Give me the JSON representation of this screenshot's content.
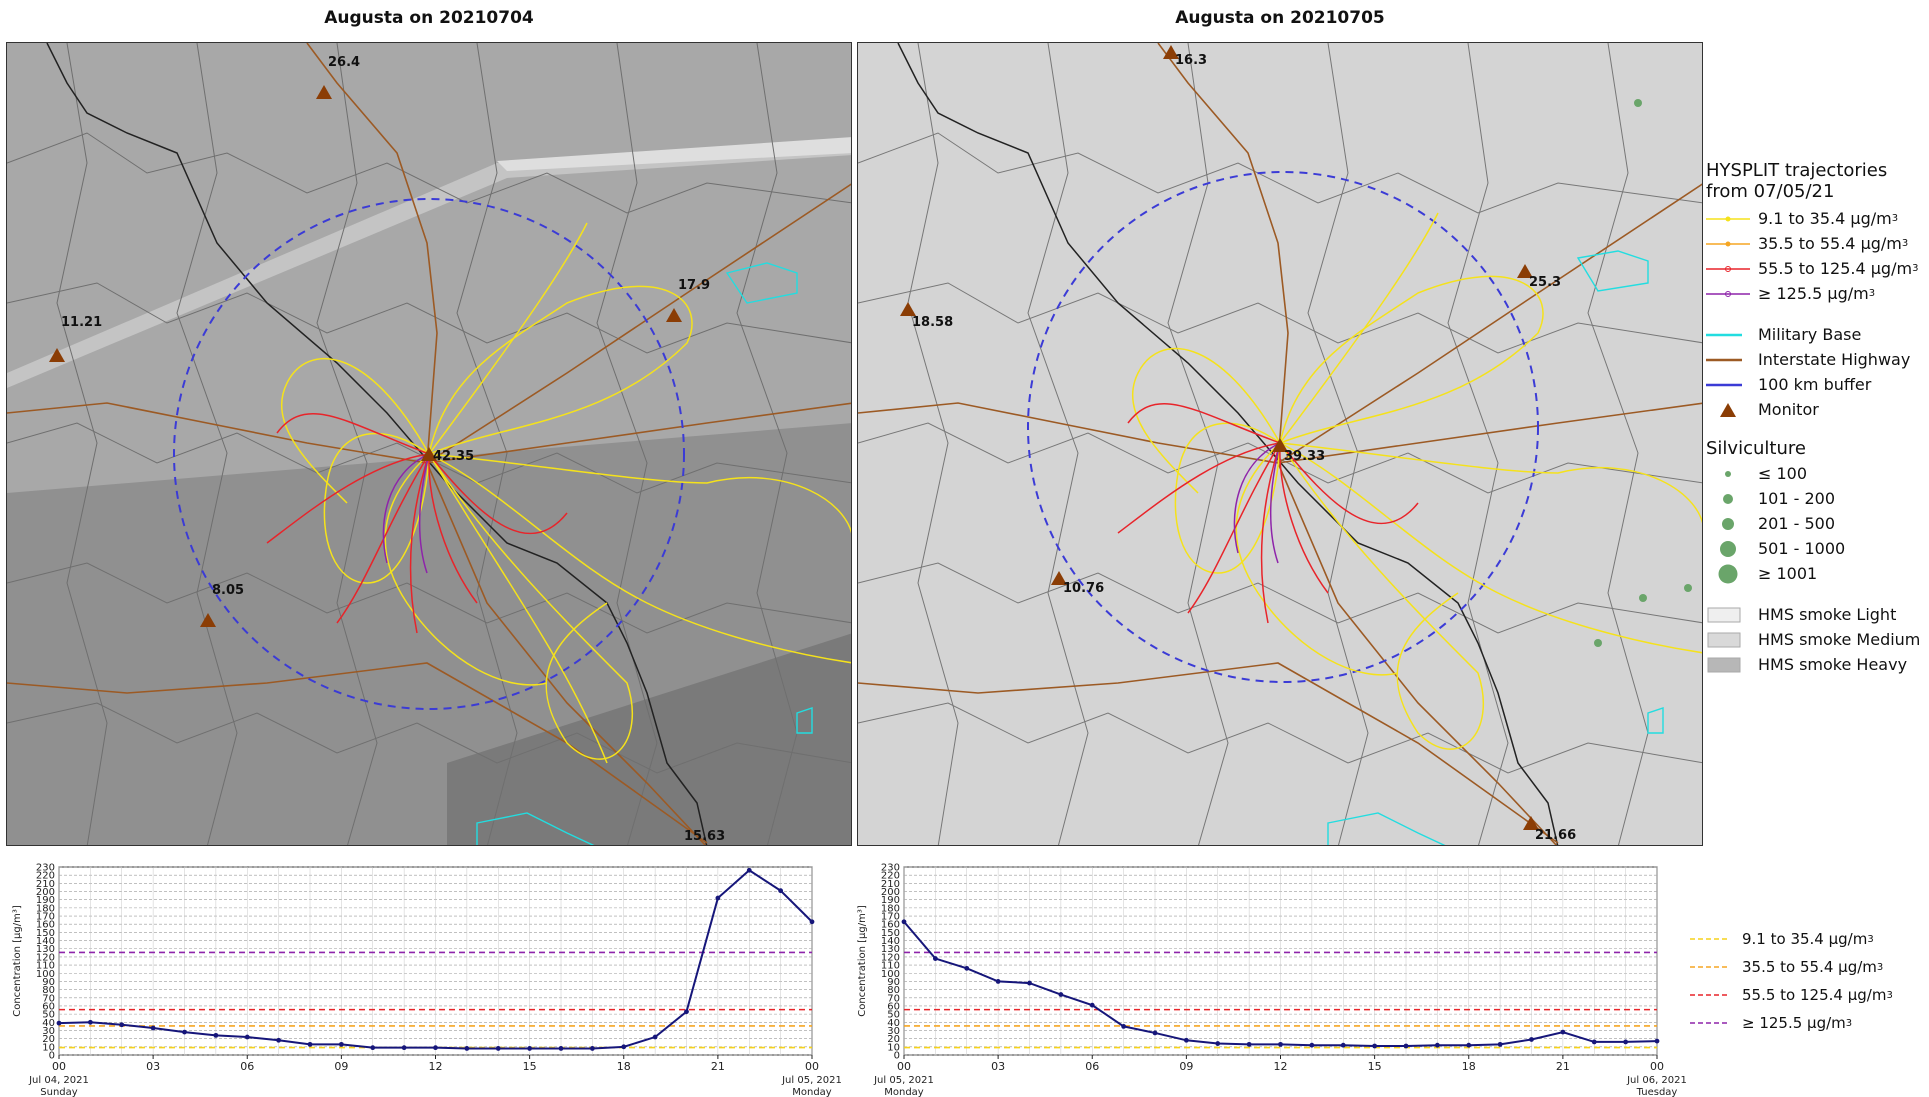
{
  "maps": [
    {
      "title": "Augusta on 20210704",
      "monitors": [
        {
          "label": "26.4"
        },
        {
          "label": "17.9"
        },
        {
          "label": "11.21"
        },
        {
          "label": "42.35"
        },
        {
          "label": "8.05"
        },
        {
          "label": "15.63"
        }
      ]
    },
    {
      "title": "Augusta on 20210705",
      "monitors": [
        {
          "label": "16.3"
        },
        {
          "label": "25.3"
        },
        {
          "label": "18.58"
        },
        {
          "label": "39.33"
        },
        {
          "label": "10.76"
        },
        {
          "label": "21.66"
        }
      ]
    }
  ],
  "legend": {
    "traj_title_1": "HYSPLIT trajectories",
    "traj_title_2": "from 07/05/21",
    "trajectories": [
      {
        "label": "9.1 to 35.4 µg/m",
        "color": "#f5e21b"
      },
      {
        "label": "35.5 to 55.4 µg/m",
        "color": "#f5a623"
      },
      {
        "label": "55.5 to 125.4 µg/m",
        "color": "#e8242a"
      },
      {
        "label": "≥ 125.5 µg/m",
        "color": "#8e24aa"
      }
    ],
    "unit_sup": "3",
    "features": [
      {
        "label": "Military Base",
        "color": "#22dde0"
      },
      {
        "label": "Interstate Highway",
        "color": "#9c5a24"
      },
      {
        "label": "100 km buffer",
        "color": "#3b3bd6"
      },
      {
        "label": "Monitor",
        "color": "#8b3d05"
      }
    ],
    "silv_title": "Silviculture",
    "silviculture": [
      {
        "label": "≤ 100"
      },
      {
        "label": "101 - 200"
      },
      {
        "label": "201 - 500"
      },
      {
        "label": "501 - 1000"
      },
      {
        "label": "≥ 1001"
      }
    ],
    "smoke": [
      {
        "label": "HMS smoke Light",
        "color": "#efefef"
      },
      {
        "label": "HMS smoke Medium",
        "color": "#d9d9d9"
      },
      {
        "label": "HMS smoke Heavy",
        "color": "#b7b7b7"
      }
    ]
  },
  "chart_data": [
    {
      "type": "line",
      "ylabel": "Concentration [µg/m³]",
      "ylim": [
        0,
        230
      ],
      "yticks": [
        0,
        10,
        20,
        30,
        40,
        50,
        60,
        70,
        80,
        90,
        100,
        110,
        120,
        130,
        140,
        150,
        160,
        170,
        180,
        190,
        200,
        210,
        220,
        230
      ],
      "xticks": [
        "00",
        "03",
        "06",
        "09",
        "12",
        "15",
        "18",
        "21",
        "00"
      ],
      "start_label_1": "Jul 04, 2021",
      "start_label_2": "Sunday",
      "end_label_1": "Jul 05, 2021",
      "end_label_2": "Monday",
      "hours": [
        0,
        1,
        2,
        3,
        4,
        5,
        6,
        7,
        8,
        9,
        10,
        11,
        12,
        13,
        14,
        15,
        16,
        17,
        18,
        19,
        20,
        21,
        22,
        23,
        24
      ],
      "values": [
        39,
        40,
        37,
        33,
        28,
        24,
        22,
        18,
        13,
        13,
        9,
        9,
        9,
        8,
        8,
        8,
        8,
        8,
        10,
        22,
        53,
        192,
        226,
        201,
        163
      ],
      "thresholds": [
        {
          "value": 9.1,
          "color": "#f5d21b"
        },
        {
          "value": 35.5,
          "color": "#f5a623"
        },
        {
          "value": 55.5,
          "color": "#e8242a"
        },
        {
          "value": 125.5,
          "color": "#8e24aa"
        }
      ],
      "grid": true
    },
    {
      "type": "line",
      "ylabel": "Concentration [µg/m³]",
      "ylim": [
        0,
        230
      ],
      "yticks": [
        0,
        10,
        20,
        30,
        40,
        50,
        60,
        70,
        80,
        90,
        100,
        110,
        120,
        130,
        140,
        150,
        160,
        170,
        180,
        190,
        200,
        210,
        220,
        230
      ],
      "xticks": [
        "00",
        "03",
        "06",
        "09",
        "12",
        "15",
        "18",
        "21",
        "00"
      ],
      "start_label_1": "Jul 05, 2021",
      "start_label_2": "Monday",
      "end_label_1": "Jul 06, 2021",
      "end_label_2": "Tuesday",
      "hours": [
        0,
        1,
        2,
        3,
        4,
        5,
        6,
        7,
        8,
        9,
        10,
        11,
        12,
        13,
        14,
        15,
        16,
        17,
        18,
        19,
        20,
        21,
        22,
        23,
        24
      ],
      "values": [
        163,
        118,
        106,
        90,
        88,
        74,
        61,
        35,
        27,
        18,
        14,
        13,
        13,
        12,
        12,
        11,
        11,
        12,
        12,
        13,
        19,
        28,
        16,
        16,
        17
      ],
      "thresholds": [
        {
          "value": 9.1,
          "color": "#f5d21b"
        },
        {
          "value": 35.5,
          "color": "#f5a623"
        },
        {
          "value": 55.5,
          "color": "#e8242a"
        },
        {
          "value": 125.5,
          "color": "#8e24aa"
        }
      ],
      "grid": true
    }
  ],
  "chart_legend": [
    {
      "label": "9.1 to 35.4 µg/m",
      "color": "#f5d21b"
    },
    {
      "label": "35.5 to 55.4 µg/m",
      "color": "#f5a623"
    },
    {
      "label": "55.5 to 125.4 µg/m",
      "color": "#e8242a"
    },
    {
      "label": " ≥ 125.5 µg/m",
      "color": "#8e24aa"
    }
  ]
}
